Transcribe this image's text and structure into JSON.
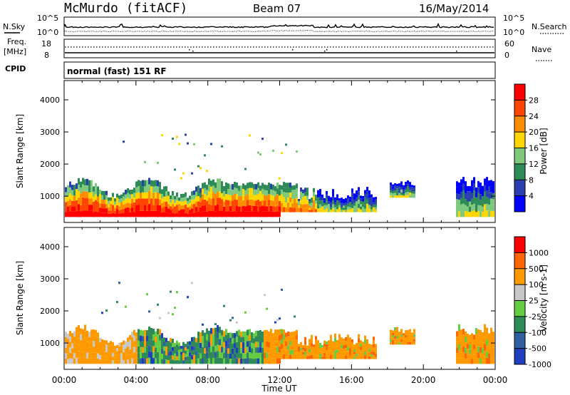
{
  "header": {
    "station": "McMurdo (fitACF)",
    "beam": "Beam 07",
    "date": "16/May/2014"
  },
  "strip_labels": {
    "n_sky": "N.Sky",
    "n_search": "N.Search",
    "freq_line1": "Freq.",
    "freq_line2": "[MHz]",
    "cpid": "CPID",
    "nave": "Nave",
    "noise_top": "10^5",
    "noise_bottom": "10^0",
    "noise_top_right": "10^5",
    "noise_bottom_right": "10^0",
    "freq_top": "18",
    "freq_bottom": "8",
    "nave_top": "60",
    "nave_bottom": "0",
    "cpid_text": "normal (fast) 151 RF"
  },
  "colors": {
    "power_scale": [
      "#0000ff",
      "#2a3fb0",
      "#2e8b57",
      "#7fc97f",
      "#ffd700",
      "#ff8c00",
      "#ff4500",
      "#ff0000"
    ],
    "velocity_scale": [
      "#1f3fbf",
      "#3060a0",
      "#2e8b57",
      "#66cc44",
      "#c8c8c8",
      "#ff9900",
      "#ff6600",
      "#ff0000"
    ]
  },
  "chart_data": [
    {
      "type": "heatmap",
      "name": "power",
      "ylabel": "Slant Range [km]",
      "ylim": [
        180,
        4600
      ],
      "yticks": [
        "1000",
        "2000",
        "3000",
        "4000"
      ],
      "colorbar_label": "Power [dB]",
      "colorbar_ticks": [
        "4",
        "8",
        "12",
        "16",
        "20",
        "24",
        "28"
      ],
      "xlim": [
        0,
        24
      ],
      "xticks": [
        "00:00",
        "04:00",
        "08:00",
        "12:00",
        "16:00",
        "20:00",
        "00:00"
      ],
      "xlabel": "Time UT"
    },
    {
      "type": "heatmap",
      "name": "velocity",
      "ylabel": "Slant Range [km]",
      "ylim": [
        180,
        4600
      ],
      "yticks": [
        "1000",
        "2000",
        "3000",
        "4000"
      ],
      "colorbar_label": "Velocity [m s-1]",
      "colorbar_ticks": [
        "1000",
        "500",
        "100",
        "25",
        "-25",
        "-100",
        "-500",
        "-1000"
      ],
      "xlim": [
        0,
        24
      ],
      "xticks": [
        "00:00",
        "04:00",
        "08:00",
        "12:00",
        "16:00",
        "20:00",
        "00:00"
      ],
      "xlabel": "Time UT"
    }
  ]
}
